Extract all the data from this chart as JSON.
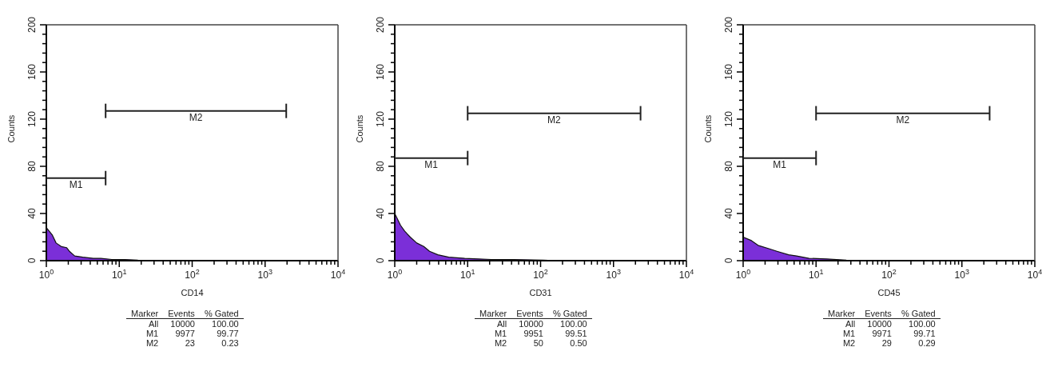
{
  "chart_data": [
    {
      "type": "area",
      "xlabel": "CD14",
      "ylabel": "Counts",
      "log": "x",
      "xlim": [
        1,
        10000
      ],
      "ylim": [
        0,
        200
      ],
      "xticks": [
        {
          "value": 1,
          "label": "10$^{0}$"
        },
        {
          "value": 2,
          "label": null
        },
        {
          "value": 3,
          "label": null
        },
        {
          "value": 4,
          "label": null
        },
        {
          "value": 5,
          "label": null
        },
        {
          "value": 6,
          "label": null
        },
        {
          "value": 7,
          "label": null
        },
        {
          "value": 8,
          "label": null
        },
        {
          "value": 9,
          "label": null
        },
        {
          "value": 10,
          "label": "10$^{1}$"
        },
        {
          "value": 20,
          "label": null
        },
        {
          "value": 30,
          "label": null
        },
        {
          "value": 40,
          "label": null
        },
        {
          "value": 50,
          "label": null
        },
        {
          "value": 60,
          "label": null
        },
        {
          "value": 70,
          "label": null
        },
        {
          "value": 80,
          "label": null
        },
        {
          "value": 90,
          "label": null
        },
        {
          "value": 100,
          "label": "10$^{2}$"
        },
        {
          "value": 200,
          "label": null
        },
        {
          "value": 300,
          "label": null
        },
        {
          "value": 400,
          "label": null
        },
        {
          "value": 500,
          "label": null
        },
        {
          "value": 600,
          "label": null
        },
        {
          "value": 700,
          "label": null
        },
        {
          "value": 800,
          "label": null
        },
        {
          "value": 900,
          "label": null
        },
        {
          "value": 1000,
          "label": "10$^{3}$"
        },
        {
          "value": 2000,
          "label": null
        },
        {
          "value": 3000,
          "label": null
        },
        {
          "value": 4000,
          "label": null
        },
        {
          "value": 5000,
          "label": null
        },
        {
          "value": 6000,
          "label": null
        },
        {
          "value": 7000,
          "label": null
        },
        {
          "value": 8000,
          "label": null
        },
        {
          "value": 9000,
          "label": null
        },
        {
          "value": 10000,
          "label": "10$^{4}$"
        }
      ],
      "yticks": [
        0,
        {
          "value": 8,
          "label": null
        },
        {
          "value": 16,
          "label": null
        },
        {
          "value": 24,
          "label": null
        },
        {
          "value": 32,
          "label": null
        },
        40,
        {
          "value": 48,
          "label": null
        },
        {
          "value": 56,
          "label": null
        },
        {
          "value": 64,
          "label": null
        },
        {
          "value": 72,
          "label": null
        },
        80,
        {
          "value": 88,
          "label": null
        },
        {
          "value": 96,
          "label": null
        },
        {
          "value": 104,
          "label": null
        },
        {
          "value": 112,
          "label": null
        },
        120,
        {
          "value": 128,
          "label": null
        },
        {
          "value": 136,
          "label": null
        },
        {
          "value": 144,
          "label": null
        },
        {
          "value": 152,
          "label": null
        },
        160,
        {
          "value": 168,
          "label": null
        },
        {
          "value": 176,
          "label": null
        },
        {
          "value": 184,
          "label": null
        },
        {
          "value": 192,
          "label": null
        },
        200
      ],
      "series": [
        {
          "type": "area",
          "color": "#7b2fd8",
          "x": [
            1,
            1,
            1.2,
            1.36,
            1.6,
            1.9,
            2.07,
            2.45,
            3.16,
            4.4,
            5.6,
            7.9,
            12,
            18,
            35,
            42
          ],
          "values": [
            112,
            28,
            22,
            15,
            12,
            11,
            8,
            4,
            3,
            2,
            2,
            1,
            1,
            0.5,
            0.3,
            0
          ]
        },
        {
          "type": "line",
          "name": "M1",
          "color": "#222222",
          "x": [
            1,
            6.5
          ],
          "values": [
            70,
            70
          ]
        },
        {
          "type": "line",
          "name": "M2",
          "color": "#222222",
          "x": [
            6.5,
            1950
          ],
          "values": [
            127,
            127
          ]
        }
      ],
      "annotations": [
        "Marker",
        "Events",
        "% Gated",
        "All",
        "10000",
        "100.00",
        "M1",
        "9977",
        "99.77",
        "M2",
        "23",
        "0.23"
      ]
    },
    {
      "type": "area",
      "xlabel": "CD31",
      "ylabel": "Counts",
      "log": "x",
      "xlim": [
        1,
        10000
      ],
      "ylim": [
        0,
        200
      ],
      "xticks": [
        {
          "value": 1,
          "label": "10$^{0}$"
        },
        {
          "value": 2,
          "label": null
        },
        {
          "value": 3,
          "label": null
        },
        {
          "value": 4,
          "label": null
        },
        {
          "value": 5,
          "label": null
        },
        {
          "value": 6,
          "label": null
        },
        {
          "value": 7,
          "label": null
        },
        {
          "value": 8,
          "label": null
        },
        {
          "value": 9,
          "label": null
        },
        {
          "value": 10,
          "label": "10$^{1}$"
        },
        {
          "value": 20,
          "label": null
        },
        {
          "value": 30,
          "label": null
        },
        {
          "value": 40,
          "label": null
        },
        {
          "value": 50,
          "label": null
        },
        {
          "value": 60,
          "label": null
        },
        {
          "value": 70,
          "label": null
        },
        {
          "value": 80,
          "label": null
        },
        {
          "value": 90,
          "label": null
        },
        {
          "value": 100,
          "label": "10$^{2}$"
        },
        {
          "value": 200,
          "label": null
        },
        {
          "value": 300,
          "label": null
        },
        {
          "value": 400,
          "label": null
        },
        {
          "value": 500,
          "label": null
        },
        {
          "value": 600,
          "label": null
        },
        {
          "value": 700,
          "label": null
        },
        {
          "value": 800,
          "label": null
        },
        {
          "value": 900,
          "label": null
        },
        {
          "value": 1000,
          "label": "10$^{3}$"
        },
        {
          "value": 2000,
          "label": null
        },
        {
          "value": 3000,
          "label": null
        },
        {
          "value": 4000,
          "label": null
        },
        {
          "value": 5000,
          "label": null
        },
        {
          "value": 6000,
          "label": null
        },
        {
          "value": 7000,
          "label": null
        },
        {
          "value": 8000,
          "label": null
        },
        {
          "value": 9000,
          "label": null
        },
        {
          "value": 10000,
          "label": "10$^{4}$"
        }
      ],
      "yticks": [
        0,
        {
          "value": 8,
          "label": null
        },
        {
          "value": 16,
          "label": null
        },
        {
          "value": 24,
          "label": null
        },
        {
          "value": 32,
          "label": null
        },
        40,
        {
          "value": 48,
          "label": null
        },
        {
          "value": 56,
          "label": null
        },
        {
          "value": 64,
          "label": null
        },
        {
          "value": 72,
          "label": null
        },
        80,
        {
          "value": 88,
          "label": null
        },
        {
          "value": 96,
          "label": null
        },
        {
          "value": 104,
          "label": null
        },
        {
          "value": 112,
          "label": null
        },
        120,
        {
          "value": 128,
          "label": null
        },
        {
          "value": 136,
          "label": null
        },
        {
          "value": 144,
          "label": null
        },
        {
          "value": 152,
          "label": null
        },
        160,
        {
          "value": 168,
          "label": null
        },
        {
          "value": 176,
          "label": null
        },
        {
          "value": 184,
          "label": null
        },
        {
          "value": 192,
          "label": null
        },
        200
      ],
      "series": [
        {
          "type": "area",
          "color": "#7b2fd8",
          "x": [
            1,
            1,
            1.2,
            1.37,
            1.63,
            2,
            2.5,
            3,
            3.9,
            5.5,
            9.1,
            14,
            21,
            43,
            110,
            170
          ],
          "values": [
            118,
            40,
            30,
            25,
            20,
            15,
            12,
            8,
            5,
            3,
            2,
            1.5,
            1,
            1,
            0.5,
            0
          ]
        },
        {
          "type": "line",
          "name": "M1",
          "color": "#222222",
          "x": [
            1,
            10
          ],
          "values": [
            87,
            87
          ]
        },
        {
          "type": "line",
          "name": "M2",
          "color": "#222222",
          "x": [
            10,
            2350
          ],
          "values": [
            125,
            125
          ]
        }
      ],
      "annotations": [
        "Marker",
        "Events",
        "% Gated",
        "All",
        "10000",
        "100.00",
        "M1",
        "9951",
        "99.51",
        "M2",
        "50",
        "0.50"
      ]
    },
    {
      "type": "area",
      "xlabel": "CD45",
      "ylabel": "Counts",
      "log": "x",
      "xlim": [
        1,
        10000
      ],
      "ylim": [
        0,
        200
      ],
      "xticks": [
        {
          "value": 1,
          "label": "10$^{0}$"
        },
        {
          "value": 2,
          "label": null
        },
        {
          "value": 3,
          "label": null
        },
        {
          "value": 4,
          "label": null
        },
        {
          "value": 5,
          "label": null
        },
        {
          "value": 6,
          "label": null
        },
        {
          "value": 7,
          "label": null
        },
        {
          "value": 8,
          "label": null
        },
        {
          "value": 9,
          "label": null
        },
        {
          "value": 10,
          "label": "10$^{1}$"
        },
        {
          "value": 20,
          "label": null
        },
        {
          "value": 30,
          "label": null
        },
        {
          "value": 40,
          "label": null
        },
        {
          "value": 50,
          "label": null
        },
        {
          "value": 60,
          "label": null
        },
        {
          "value": 70,
          "label": null
        },
        {
          "value": 80,
          "label": null
        },
        {
          "value": 90,
          "label": null
        },
        {
          "value": 100,
          "label": "10$^{2}$"
        },
        {
          "value": 200,
          "label": null
        },
        {
          "value": 300,
          "label": null
        },
        {
          "value": 400,
          "label": null
        },
        {
          "value": 500,
          "label": null
        },
        {
          "value": 600,
          "label": null
        },
        {
          "value": 700,
          "label": null
        },
        {
          "value": 800,
          "label": null
        },
        {
          "value": 900,
          "label": null
        },
        {
          "value": 1000,
          "label": "10$^{3}$"
        },
        {
          "value": 2000,
          "label": null
        },
        {
          "value": 3000,
          "label": null
        },
        {
          "value": 4000,
          "label": null
        },
        {
          "value": 5000,
          "label": null
        },
        {
          "value": 6000,
          "label": null
        },
        {
          "value": 7000,
          "label": null
        },
        {
          "value": 8000,
          "label": null
        },
        {
          "value": 9000,
          "label": null
        },
        {
          "value": 10000,
          "label": "10$^{4}$"
        }
      ],
      "yticks": [
        0,
        {
          "value": 8,
          "label": null
        },
        {
          "value": 16,
          "label": null
        },
        {
          "value": 24,
          "label": null
        },
        {
          "value": 32,
          "label": null
        },
        40,
        {
          "value": 48,
          "label": null
        },
        {
          "value": 56,
          "label": null
        },
        {
          "value": 64,
          "label": null
        },
        {
          "value": 72,
          "label": null
        },
        80,
        {
          "value": 88,
          "label": null
        },
        {
          "value": 96,
          "label": null
        },
        {
          "value": 104,
          "label": null
        },
        {
          "value": 112,
          "label": null
        },
        120,
        {
          "value": 128,
          "label": null
        },
        {
          "value": 136,
          "label": null
        },
        {
          "value": 144,
          "label": null
        },
        {
          "value": 152,
          "label": null
        },
        160,
        {
          "value": 168,
          "label": null
        },
        {
          "value": 176,
          "label": null
        },
        {
          "value": 184,
          "label": null
        },
        {
          "value": 192,
          "label": null
        },
        200
      ],
      "series": [
        {
          "type": "area",
          "color": "#7b2fd8",
          "x": [
            1,
            1,
            1.3,
            1.6,
            2.3,
            2.9,
            4.2,
            5.4,
            8,
            14,
            26,
            62,
            235
          ],
          "values": [
            109,
            20,
            17,
            13,
            10,
            8,
            5,
            4,
            2,
            1.5,
            0.5,
            0.3,
            0
          ]
        },
        {
          "type": "line",
          "name": "M1",
          "color": "#222222",
          "x": [
            1,
            10
          ],
          "values": [
            87,
            87
          ]
        },
        {
          "type": "line",
          "name": "M2",
          "color": "#222222",
          "x": [
            10,
            2400
          ],
          "values": [
            125,
            125
          ]
        }
      ],
      "annotations": [
        "Marker",
        "Events",
        "% Gated",
        "All",
        "10000",
        "100.00",
        "M1",
        "9971",
        "99.71",
        "M2",
        "29",
        "0.29"
      ]
    }
  ]
}
